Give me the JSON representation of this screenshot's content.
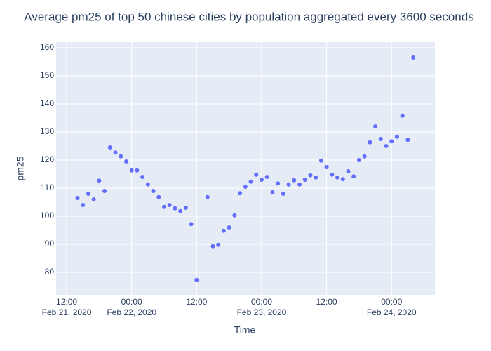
{
  "chart_data": {
    "type": "scatter",
    "title": "Average pm25 of top 50 chinese cities by population aggregated every 3600 seconds",
    "x_label": "Time",
    "y_label": "pm25",
    "x": [
      "2020-02-21T14:00",
      "2020-02-21T15:00",
      "2020-02-21T16:00",
      "2020-02-21T17:00",
      "2020-02-21T18:00",
      "2020-02-21T19:00",
      "2020-02-21T20:00",
      "2020-02-21T21:00",
      "2020-02-21T22:00",
      "2020-02-21T23:00",
      "2020-02-22T00:00",
      "2020-02-22T01:00",
      "2020-02-22T02:00",
      "2020-02-22T03:00",
      "2020-02-22T04:00",
      "2020-02-22T05:00",
      "2020-02-22T06:00",
      "2020-02-22T07:00",
      "2020-02-22T08:00",
      "2020-02-22T09:00",
      "2020-02-22T10:00",
      "2020-02-22T11:00",
      "2020-02-22T12:00",
      "2020-02-22T14:00",
      "2020-02-22T15:00",
      "2020-02-22T16:00",
      "2020-02-22T17:00",
      "2020-02-22T18:00",
      "2020-02-22T19:00",
      "2020-02-22T20:00",
      "2020-02-22T21:00",
      "2020-02-22T22:00",
      "2020-02-22T23:00",
      "2020-02-23T00:00",
      "2020-02-23T01:00",
      "2020-02-23T02:00",
      "2020-02-23T03:00",
      "2020-02-23T04:00",
      "2020-02-23T05:00",
      "2020-02-23T06:00",
      "2020-02-23T07:00",
      "2020-02-23T08:00",
      "2020-02-23T09:00",
      "2020-02-23T10:00",
      "2020-02-23T11:00",
      "2020-02-23T12:00",
      "2020-02-23T13:00",
      "2020-02-23T14:00",
      "2020-02-23T15:00",
      "2020-02-23T16:00",
      "2020-02-23T17:00",
      "2020-02-23T18:00",
      "2020-02-23T19:00",
      "2020-02-23T20:00",
      "2020-02-23T21:00",
      "2020-02-23T22:00",
      "2020-02-23T23:00",
      "2020-02-24T00:00",
      "2020-02-24T01:00",
      "2020-02-24T02:00",
      "2020-02-24T03:00",
      "2020-02-24T04:00"
    ],
    "values": [
      106.5,
      104,
      108,
      106,
      112.7,
      109,
      124.5,
      122.7,
      121.3,
      119.5,
      116.3,
      116.3,
      114,
      111.3,
      109,
      106.8,
      103.3,
      104,
      102.8,
      101.8,
      103,
      97.2,
      77.3,
      106.8,
      89.3,
      89.8,
      94.8,
      96,
      100.3,
      108.2,
      110.5,
      112.3,
      114.8,
      113,
      114,
      108.5,
      111.7,
      108,
      111.3,
      112.8,
      111.3,
      113,
      114.6,
      113.8,
      119.8,
      117.5,
      114.8,
      113.8,
      113.2,
      116,
      114.2,
      120,
      121.3,
      126.3,
      132,
      127.5,
      125,
      126.7,
      128.3,
      135.8,
      127.2,
      156.5
    ],
    "color": "#636efa",
    "xlim": [
      "2020-02-21T10:03",
      "2020-02-24T08:00"
    ],
    "xticks": [
      {
        "value": "2020-02-21T12:00",
        "label": "12:00\nFeb 21, 2020"
      },
      {
        "value": "2020-02-22T00:00",
        "label": "00:00\nFeb 22, 2020"
      },
      {
        "value": "2020-02-22T12:00",
        "label": "12:00"
      },
      {
        "value": "2020-02-23T00:00",
        "label": "00:00\nFeb 23, 2020"
      },
      {
        "value": "2020-02-23T12:00",
        "label": "12:00"
      },
      {
        "value": "2020-02-24T00:00",
        "label": "00:00\nFeb 24, 2020"
      }
    ],
    "ylim": [
      72,
      162
    ],
    "yticks": [
      80,
      90,
      100,
      110,
      120,
      130,
      140,
      150,
      160
    ],
    "grid": true
  }
}
